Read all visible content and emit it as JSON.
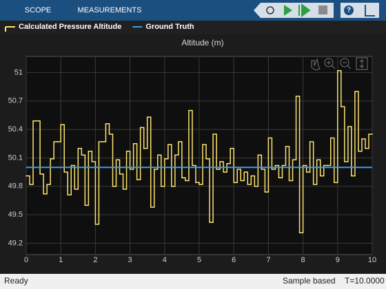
{
  "toolbar": {
    "tabs": [
      "SCOPE",
      "MEASUREMENTS"
    ]
  },
  "chart_data": {
    "type": "stairs",
    "title": "Altitude (m)",
    "xlim": [
      0,
      10
    ],
    "ylim": [
      49.08,
      51.17
    ],
    "xticks": [
      0,
      1,
      2,
      3,
      4,
      5,
      6,
      7,
      8,
      9,
      10
    ],
    "yticks": [
      49.2,
      49.5,
      49.8,
      50.1,
      50.4,
      50.7,
      51
    ],
    "grid": true,
    "series": [
      {
        "name": "Calculated Pressure Altitude",
        "color": "#ffe56e",
        "stairs": true,
        "x": [
          0,
          0.1,
          0.2,
          0.3,
          0.4,
          0.5,
          0.6,
          0.7,
          0.8,
          0.9,
          1,
          1.1,
          1.2,
          1.3,
          1.4,
          1.5,
          1.6,
          1.7,
          1.8,
          1.9,
          2,
          2.1,
          2.2,
          2.3,
          2.4,
          2.5,
          2.6,
          2.7,
          2.8,
          2.9,
          3,
          3.1,
          3.2,
          3.3,
          3.4,
          3.5,
          3.6,
          3.7,
          3.8,
          3.9,
          4,
          4.1,
          4.2,
          4.3,
          4.4,
          4.5,
          4.6,
          4.7,
          4.8,
          4.9,
          5,
          5.1,
          5.2,
          5.3,
          5.4,
          5.5,
          5.6,
          5.7,
          5.8,
          5.9,
          6,
          6.1,
          6.2,
          6.3,
          6.4,
          6.5,
          6.6,
          6.7,
          6.8,
          6.9,
          7,
          7.1,
          7.2,
          7.3,
          7.4,
          7.5,
          7.6,
          7.7,
          7.8,
          7.9,
          8,
          8.1,
          8.2,
          8.3,
          8.4,
          8.5,
          8.6,
          8.7,
          8.8,
          8.9,
          9,
          9.1,
          9.2,
          9.3,
          9.4,
          9.5,
          9.6,
          9.7,
          9.8,
          9.9
        ],
        "values": [
          49.91,
          49.82,
          50.49,
          50.49,
          49.93,
          49.72,
          49.82,
          50.09,
          50.27,
          50.27,
          50.45,
          49.95,
          49.71,
          50.02,
          49.77,
          50.2,
          50.13,
          49.6,
          50.17,
          50.06,
          49.4,
          50.27,
          50.27,
          50.46,
          50.35,
          49.8,
          50.08,
          49.93,
          49.77,
          50.17,
          49.98,
          50.25,
          49.87,
          50.42,
          50.2,
          50.53,
          49.58,
          49.98,
          50.13,
          49.8,
          50.09,
          50.24,
          49.8,
          50.13,
          50.27,
          49.89,
          49.86,
          50.6,
          50.02,
          49.84,
          49.82,
          50.24,
          50.09,
          49.42,
          50.35,
          49.98,
          50.06,
          49.95,
          50.04,
          50.2,
          49.84,
          49.98,
          49.86,
          49.95,
          49.82,
          49.91,
          49.8,
          50.13,
          49.98,
          49.74,
          50.31,
          49.98,
          50.02,
          49.89,
          50.02,
          50.22,
          49.86,
          50.08,
          50.75,
          49.31,
          50.02,
          49.95,
          50.27,
          49.82,
          50.08,
          49.91,
          50.02,
          50.02,
          50.31,
          49.84,
          51.02,
          50.64,
          50.06,
          50.43,
          49.91,
          50.8,
          50.17,
          50.3,
          50.2,
          50.35
        ]
      },
      {
        "name": "Ground Truth",
        "color": "#3d9ee8",
        "stairs": false,
        "x": [
          0,
          10
        ],
        "values": [
          50,
          50
        ]
      }
    ]
  },
  "status": {
    "left": "Ready",
    "mode": "Sample based",
    "time": "T=10.0000"
  }
}
